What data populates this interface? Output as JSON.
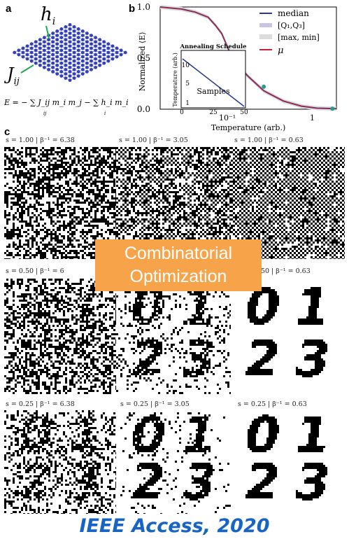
{
  "panel_a": {
    "letter": "a",
    "hi_label": "h",
    "hi_sub": "i",
    "j_label": "J",
    "j_sub": "ij",
    "energy_formula": "E = − ∑ J_ij m_i m_j − ∑ h_i m_i",
    "sum_sub_1": "ij",
    "sum_sub_2": "i"
  },
  "panel_b": {
    "letter": "b",
    "legend": {
      "median": "median",
      "q": "[Q₁,Q₃]",
      "maxmin": "[max, min]",
      "mu": "μ"
    },
    "colors": {
      "median": "#2a3a8c",
      "q": "#c9c4e6",
      "maxmin": "#dcdcdc",
      "mu": "#c0203a",
      "marker": "#2a9a8a"
    },
    "inset": {
      "title": "Annealing Schedule",
      "xlabel": "Samples",
      "ylabel": "Temperature (arb.)",
      "x_ticks": [
        "0",
        "25",
        "50"
      ],
      "y_ticks": [
        "10",
        "5",
        "1"
      ]
    }
  },
  "chart_data": {
    "type": "line",
    "title": "",
    "xlabel": "Temperature (arb.)",
    "ylabel": "Normalized ⟨E⟩",
    "x_scale": "log",
    "xlim": [
      0.02,
      2.0
    ],
    "ylim": [
      0,
      1
    ],
    "x_ticks": [
      "10⁻¹",
      "1"
    ],
    "y_ticks": [
      "0.0",
      "0.5",
      "1.0"
    ],
    "series": [
      {
        "name": "median",
        "x": [
          0.02,
          0.035,
          0.05,
          0.07,
          0.085,
          0.1,
          0.12,
          0.15,
          0.2,
          0.3,
          0.5,
          0.8,
          1.2,
          2.0
        ],
        "values": [
          1.0,
          0.98,
          0.95,
          0.9,
          0.82,
          0.74,
          0.58,
          0.44,
          0.32,
          0.18,
          0.08,
          0.03,
          0.01,
          0.005
        ]
      },
      {
        "name": "μ",
        "x": [
          0.02,
          0.035,
          0.05,
          0.07,
          0.085,
          0.1,
          0.12,
          0.15,
          0.2,
          0.3,
          0.5,
          0.8,
          1.2,
          2.0
        ],
        "values": [
          1.0,
          0.98,
          0.95,
          0.9,
          0.82,
          0.74,
          0.58,
          0.44,
          0.32,
          0.18,
          0.08,
          0.03,
          0.01,
          0.005
        ]
      }
    ],
    "markers": [
      {
        "x": 0.1,
        "y": 0.56
      },
      {
        "x": 0.3,
        "y": 0.22
      },
      {
        "x": 1.8,
        "y": 0.005
      }
    ]
  },
  "panel_c": {
    "letter": "c",
    "rows": [
      {
        "labels": [
          "s = 1.00   |   β⁻¹ = 6.38",
          "s = 1.00   |   β⁻¹ = 3.05",
          "s = 1.00   |   β⁻¹ = 0.63"
        ]
      },
      {
        "labels": [
          "s = 0.50   |   β⁻¹ = 6",
          "",
          "s = 0.50   |   β⁻¹ = 0.63"
        ]
      },
      {
        "labels": [
          "s = 0.25   |   β⁻¹ = 6.38",
          "s = 0.25   |   β⁻¹ = 3.05",
          "s = 0.25   |   β⁻¹ = 0.63"
        ]
      }
    ],
    "digits": [
      "0",
      "1",
      "2",
      "3"
    ]
  },
  "banner": {
    "line1": "Combinatorial",
    "line2": "Optimization"
  },
  "footer": {
    "citation": "IEEE Access, 2020"
  }
}
